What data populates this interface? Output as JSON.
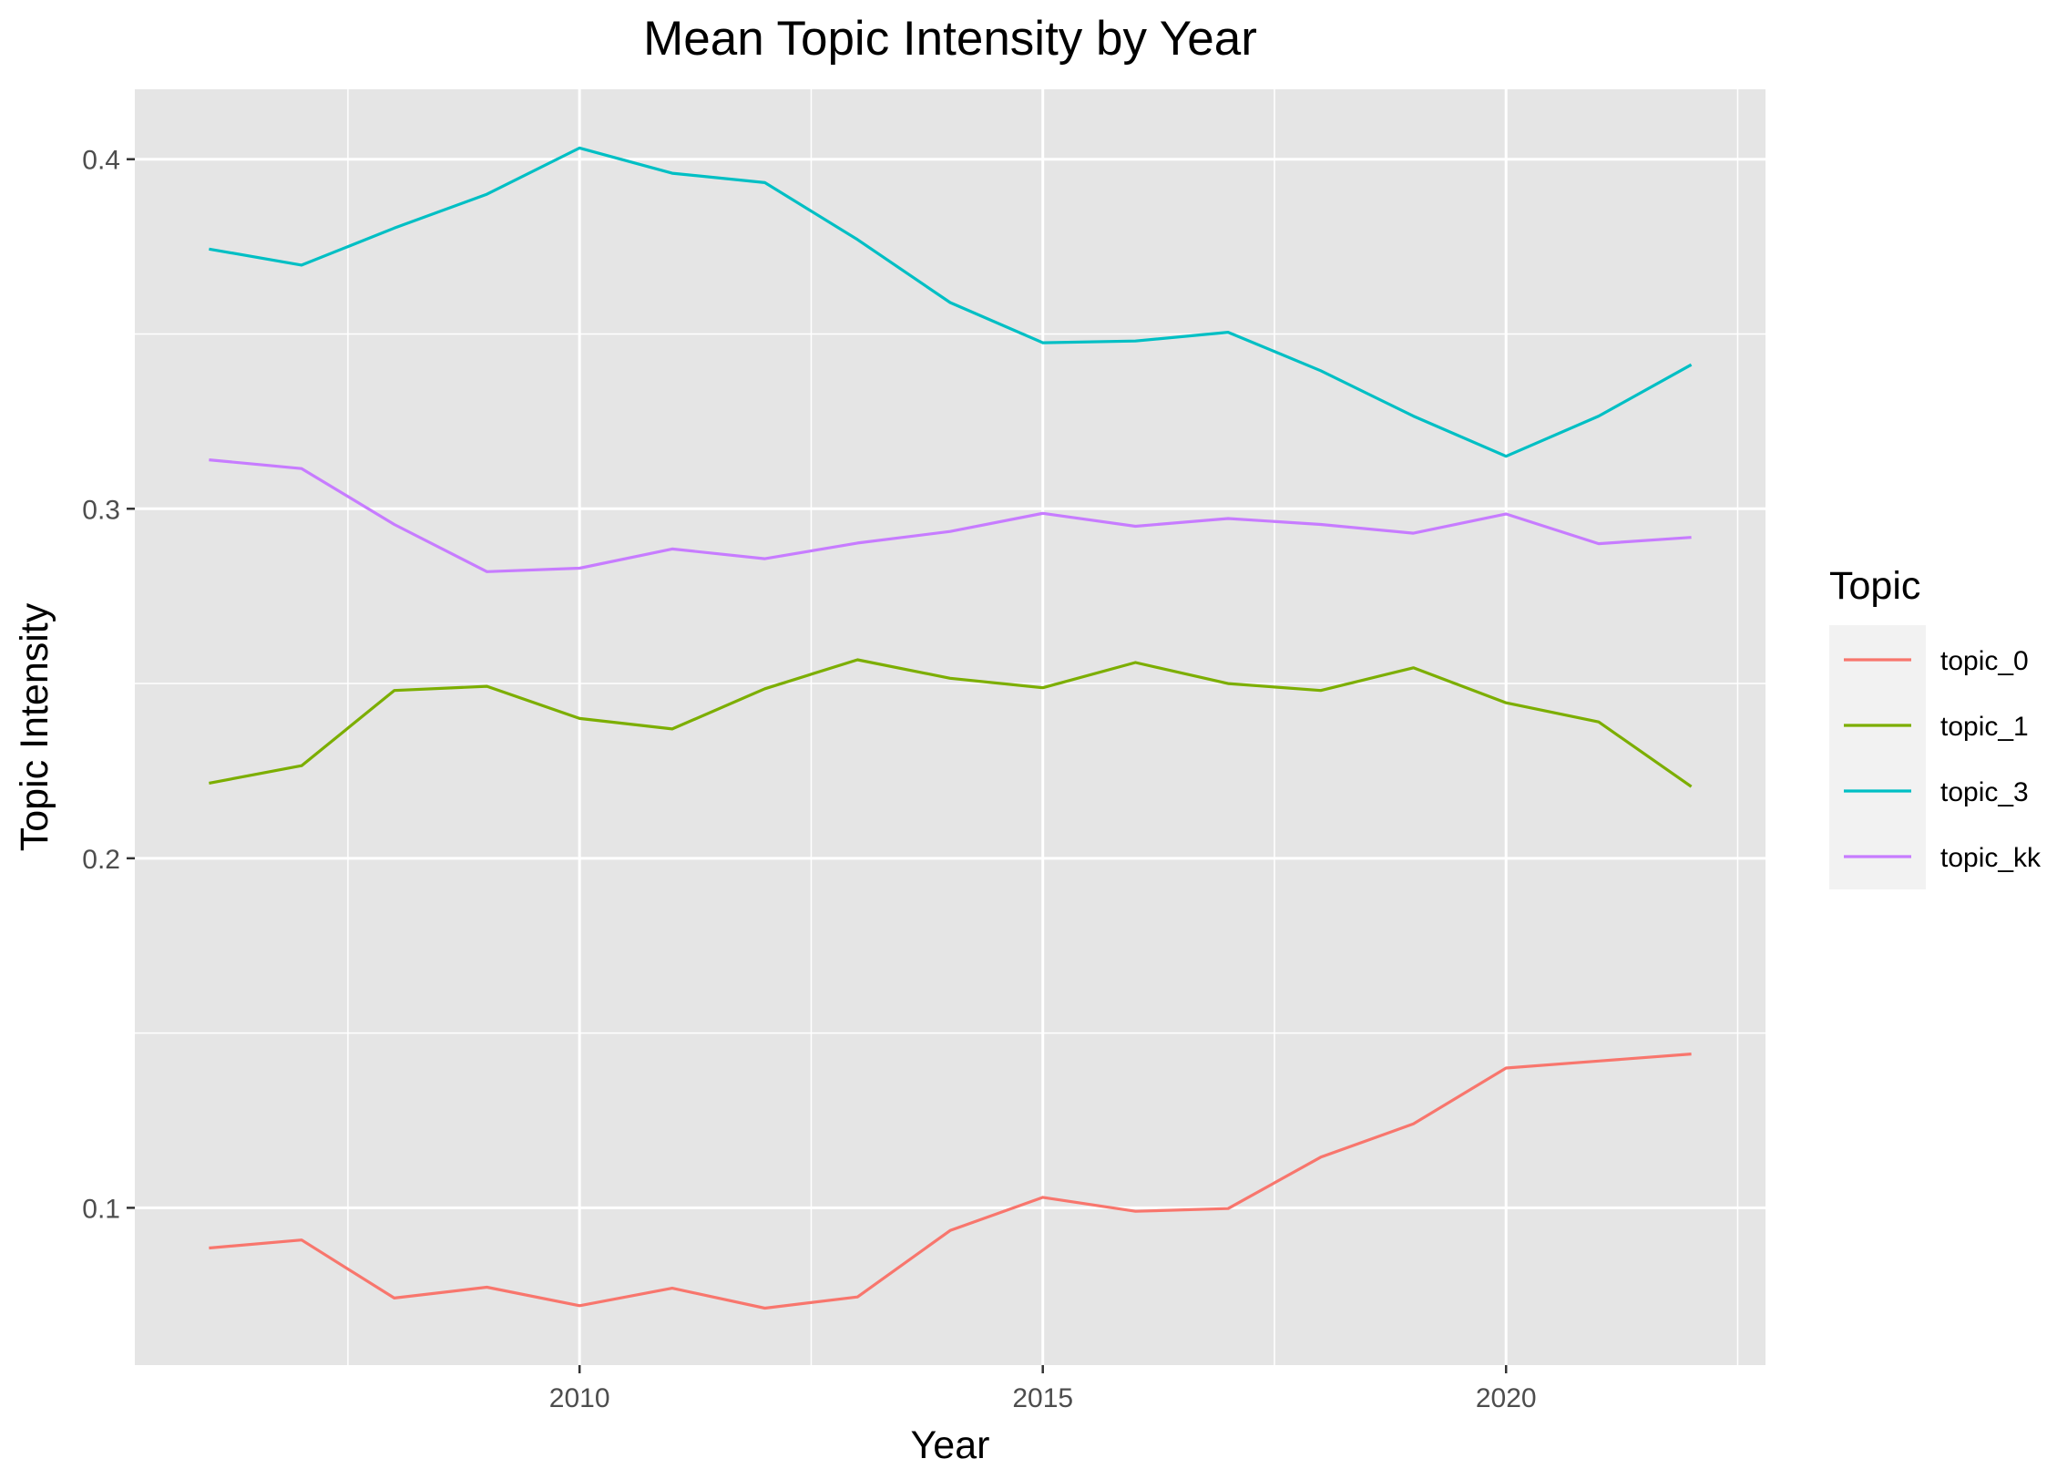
{
  "chart_data": {
    "type": "line",
    "title": "Mean Topic Intensity by Year",
    "xlabel": "Year",
    "ylabel": "Topic Intensity",
    "x": [
      2006,
      2007,
      2008,
      2009,
      2010,
      2011,
      2012,
      2013,
      2014,
      2015,
      2016,
      2017,
      2018,
      2019,
      2020,
      2021,
      2022
    ],
    "xlim": [
      2005.2,
      2022.8
    ],
    "ylim": [
      0.055,
      0.42
    ],
    "x_ticks": [
      2010,
      2015,
      2020
    ],
    "x_tick_labels": [
      "2010",
      "2015",
      "2020"
    ],
    "y_ticks": [
      0.1,
      0.2,
      0.3,
      0.4
    ],
    "y_tick_labels": [
      "0.1",
      "0.2",
      "0.3",
      "0.4"
    ],
    "grid": true,
    "legend_title": "Topic",
    "legend_position": "right",
    "background_color": "#e5e5e5",
    "series": [
      {
        "name": "topic_0",
        "color": "#F8766D",
        "values": [
          0.0885,
          0.0908,
          0.0742,
          0.0773,
          0.072,
          0.077,
          0.0713,
          0.0745,
          0.0935,
          0.103,
          0.099,
          0.0998,
          0.1145,
          0.124,
          0.14,
          0.142,
          0.144
        ]
      },
      {
        "name": "topic_1",
        "color": "#7CAE00",
        "values": [
          0.2215,
          0.2265,
          0.248,
          0.2492,
          0.24,
          0.237,
          0.2485,
          0.2568,
          0.2515,
          0.2488,
          0.256,
          0.25,
          0.248,
          0.2545,
          0.2445,
          0.239,
          0.2205
        ]
      },
      {
        "name": "topic_3",
        "color": "#00BFC4",
        "values": [
          0.3743,
          0.3697,
          0.3803,
          0.39,
          0.4032,
          0.396,
          0.3933,
          0.377,
          0.359,
          0.3475,
          0.348,
          0.3505,
          0.3395,
          0.3265,
          0.315,
          0.3265,
          0.3412
        ]
      },
      {
        "name": "topic_kk",
        "color": "#C77CFF",
        "values": [
          0.314,
          0.3115,
          0.2955,
          0.282,
          0.283,
          0.2885,
          0.2857,
          0.2902,
          0.2935,
          0.2987,
          0.295,
          0.2972,
          0.2955,
          0.293,
          0.2985,
          0.29,
          0.2918
        ]
      }
    ]
  }
}
